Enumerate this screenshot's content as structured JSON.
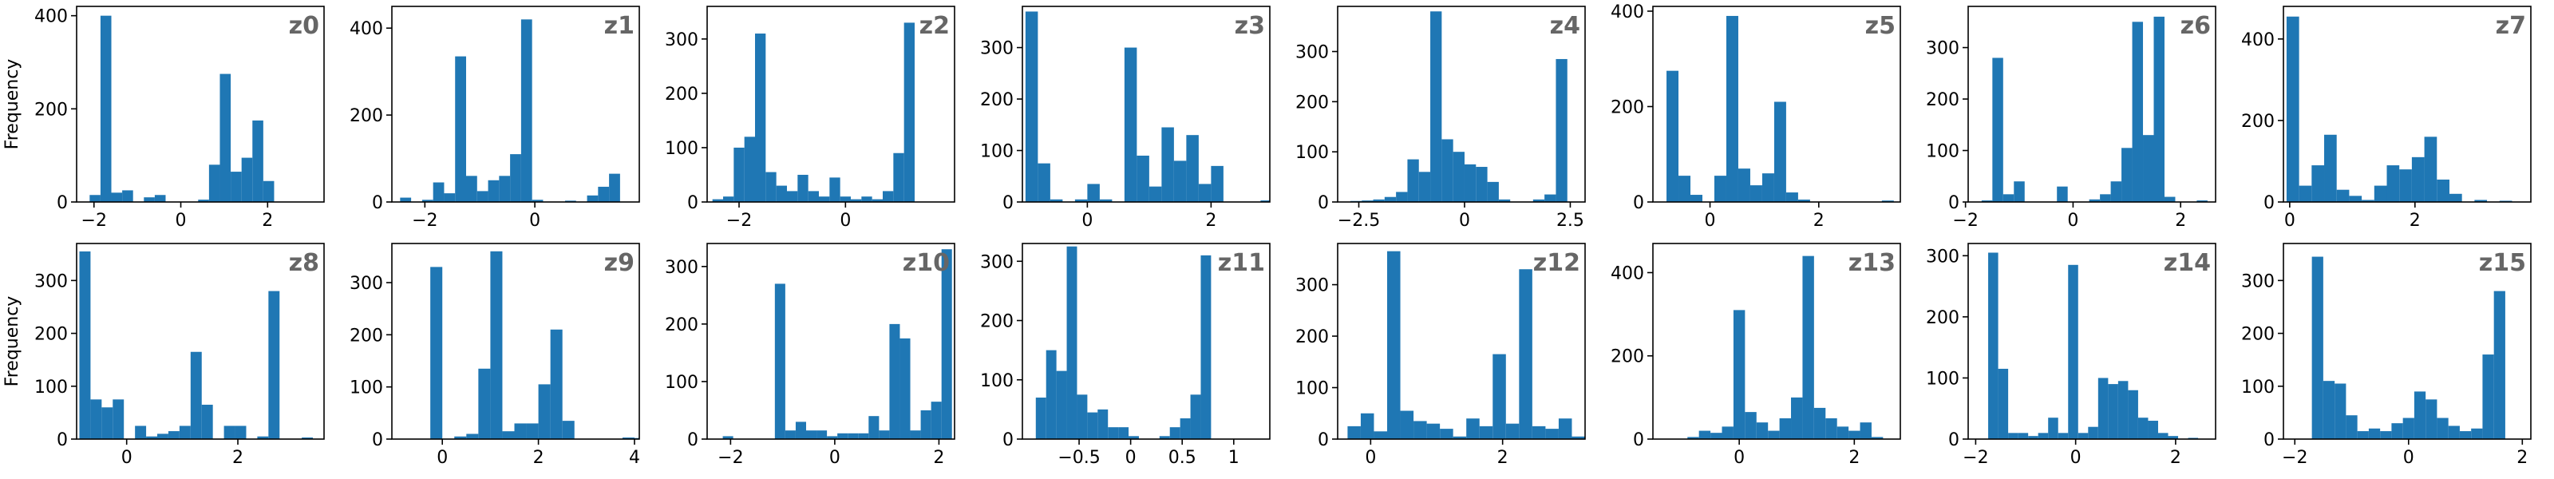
{
  "colors": {
    "bar": "#1f77b4",
    "title": "#666666",
    "axis": "#000000"
  },
  "ylabel": "Frequency",
  "chart_data": [
    {
      "title": "z0",
      "type": "bar",
      "xlim": [
        -2.4,
        3.3
      ],
      "ylim": [
        0,
        420
      ],
      "xticks": [
        -2,
        0,
        2
      ],
      "yticks": [
        0,
        200,
        400
      ],
      "bins_start": -2.1,
      "bin_width": 0.25,
      "values": [
        15,
        400,
        20,
        25,
        0,
        10,
        15,
        0,
        0,
        0,
        5,
        80,
        275,
        65,
        95,
        175,
        45,
        0,
        0,
        0
      ]
    },
    {
      "title": "z1",
      "type": "bar",
      "xlim": [
        -2.6,
        1.9
      ],
      "ylim": [
        0,
        450
      ],
      "xticks": [
        -2,
        0
      ],
      "yticks": [
        0,
        200,
        400
      ],
      "bins_start": -2.45,
      "bin_width": 0.2,
      "values": [
        10,
        0,
        5,
        45,
        20,
        335,
        60,
        25,
        50,
        60,
        110,
        420,
        5,
        0,
        0,
        3,
        0,
        15,
        35,
        65
      ]
    },
    {
      "title": "z2",
      "type": "bar",
      "xlim": [
        -2.6,
        2.05
      ],
      "ylim": [
        0,
        360
      ],
      "xticks": [
        -2,
        0
      ],
      "yticks": [
        0,
        100,
        200,
        300
      ],
      "bins_start": -2.5,
      "bin_width": 0.2,
      "values": [
        5,
        10,
        100,
        120,
        310,
        55,
        30,
        20,
        50,
        20,
        10,
        45,
        10,
        5,
        10,
        5,
        20,
        90,
        330
      ]
    },
    {
      "title": "z3",
      "type": "bar",
      "xlim": [
        -1.05,
        2.95
      ],
      "ylim": [
        0,
        380
      ],
      "xticks": [
        0,
        2
      ],
      "yticks": [
        0,
        100,
        200,
        300
      ],
      "bins_start": -1.0,
      "bin_width": 0.2,
      "values": [
        370,
        75,
        5,
        0,
        5,
        35,
        5,
        0,
        300,
        90,
        30,
        145,
        80,
        130,
        35,
        70,
        0,
        0,
        0,
        3
      ]
    },
    {
      "title": "z4",
      "type": "bar",
      "xlim": [
        -3.0,
        2.85
      ],
      "ylim": [
        0,
        390
      ],
      "xticks": [
        -2.5,
        0.0,
        2.5
      ],
      "yticks": [
        0,
        100,
        200,
        300
      ],
      "bins_start": -2.7,
      "bin_width": 0.27,
      "values": [
        2,
        3,
        5,
        10,
        20,
        85,
        60,
        380,
        125,
        100,
        75,
        70,
        40,
        5,
        0,
        0,
        5,
        15,
        285
      ]
    },
    {
      "title": "z5",
      "type": "bar",
      "xlim": [
        -1.05,
        3.5
      ],
      "ylim": [
        0,
        410
      ],
      "xticks": [
        0,
        2
      ],
      "yticks": [
        0,
        200,
        400
      ],
      "bins_start": -0.8,
      "bin_width": 0.22,
      "values": [
        275,
        55,
        15,
        0,
        55,
        390,
        70,
        35,
        60,
        210,
        20,
        5,
        0,
        0,
        0,
        0,
        0,
        0,
        3
      ]
    },
    {
      "title": "z6",
      "type": "bar",
      "xlim": [
        -1.95,
        2.65
      ],
      "ylim": [
        0,
        380
      ],
      "xticks": [
        -2,
        0,
        2
      ],
      "yticks": [
        0,
        100,
        200,
        300
      ],
      "bins_start": -1.9,
      "bin_width": 0.2,
      "values": [
        0,
        3,
        280,
        15,
        40,
        0,
        0,
        0,
        30,
        0,
        0,
        5,
        15,
        40,
        105,
        350,
        130,
        360,
        10,
        0,
        0,
        3
      ]
    },
    {
      "title": "z7",
      "type": "bar",
      "xlim": [
        -0.1,
        3.85
      ],
      "ylim": [
        0,
        480
      ],
      "xticks": [
        0,
        2
      ],
      "yticks": [
        0,
        200,
        400
      ],
      "bins_start": -0.05,
      "bin_width": 0.2,
      "values": [
        455,
        40,
        90,
        165,
        30,
        15,
        5,
        40,
        90,
        80,
        110,
        160,
        55,
        20,
        0,
        5,
        0,
        3
      ]
    },
    {
      "title": "z8",
      "type": "bar",
      "xlim": [
        -0.9,
        3.55
      ],
      "ylim": [
        0,
        370
      ],
      "xticks": [
        0,
        2
      ],
      "yticks": [
        0,
        100,
        200,
        300
      ],
      "bins_start": -0.85,
      "bin_width": 0.2,
      "values": [
        355,
        75,
        60,
        75,
        0,
        25,
        5,
        10,
        15,
        25,
        165,
        65,
        0,
        25,
        25,
        0,
        5,
        280,
        0,
        0,
        3
      ]
    },
    {
      "title": "z9",
      "type": "bar",
      "xlim": [
        -1.05,
        4.1
      ],
      "ylim": [
        0,
        375
      ],
      "xticks": [
        0,
        2,
        4
      ],
      "yticks": [
        0,
        100,
        200,
        300
      ],
      "bins_start": -0.25,
      "bin_width": 0.25,
      "values": [
        330,
        0,
        5,
        10,
        135,
        360,
        15,
        30,
        30,
        105,
        210,
        35,
        0,
        0,
        0,
        0,
        3,
        2
      ]
    },
    {
      "title": "z10",
      "type": "bar",
      "xlim": [
        -2.45,
        2.3
      ],
      "ylim": [
        0,
        340
      ],
      "xticks": [
        -2,
        0,
        2
      ],
      "yticks": [
        0,
        100,
        200,
        300
      ],
      "bins_start": -2.15,
      "bin_width": 0.2,
      "values": [
        5,
        0,
        0,
        0,
        0,
        270,
        15,
        30,
        15,
        15,
        5,
        10,
        10,
        10,
        40,
        15,
        200,
        175,
        15,
        50,
        65,
        330
      ]
    },
    {
      "title": "z11",
      "type": "bar",
      "xlim": [
        -1.05,
        1.35
      ],
      "ylim": [
        0,
        330
      ],
      "xticks": [
        -0.5,
        0.0,
        0.5,
        1.0
      ],
      "yticks": [
        0,
        100,
        200,
        300
      ],
      "bins_start": -0.92,
      "bin_width": 0.1,
      "values": [
        70,
        150,
        115,
        325,
        75,
        45,
        50,
        20,
        20,
        5,
        0,
        0,
        5,
        20,
        35,
        75,
        310
      ]
    },
    {
      "title": "z12",
      "type": "bar",
      "xlim": [
        -0.5,
        3.25
      ],
      "ylim": [
        0,
        380
      ],
      "xticks": [
        0,
        2
      ],
      "yticks": [
        0,
        100,
        200,
        300
      ],
      "bins_start": -0.35,
      "bin_width": 0.2,
      "values": [
        25,
        50,
        15,
        365,
        55,
        35,
        30,
        20,
        5,
        40,
        25,
        165,
        30,
        330,
        25,
        20,
        40,
        5,
        20
      ]
    },
    {
      "title": "z13",
      "type": "bar",
      "xlim": [
        -1.5,
        2.8
      ],
      "ylim": [
        0,
        470
      ],
      "xticks": [
        0,
        2
      ],
      "yticks": [
        0,
        200,
        400
      ],
      "bins_start": -0.9,
      "bin_width": 0.2,
      "values": [
        5,
        20,
        15,
        30,
        310,
        65,
        40,
        20,
        50,
        100,
        440,
        75,
        50,
        30,
        20,
        40,
        5
      ]
    },
    {
      "title": "z14",
      "type": "bar",
      "xlim": [
        -2.15,
        2.8
      ],
      "ylim": [
        0,
        320
      ],
      "xticks": [
        -2,
        0,
        2
      ],
      "yticks": [
        0,
        100,
        200,
        300
      ],
      "bins_start": -1.75,
      "bin_width": 0.2,
      "values": [
        305,
        115,
        10,
        10,
        5,
        10,
        35,
        10,
        285,
        10,
        20,
        100,
        90,
        95,
        80,
        35,
        30,
        10,
        5,
        0,
        2
      ]
    },
    {
      "title": "z15",
      "type": "bar",
      "xlim": [
        -2.2,
        2.15
      ],
      "ylim": [
        0,
        370
      ],
      "xticks": [
        -2,
        0,
        2
      ],
      "yticks": [
        0,
        100,
        200,
        300
      ],
      "bins_start": -1.7,
      "bin_width": 0.2,
      "values": [
        345,
        110,
        105,
        45,
        15,
        20,
        15,
        30,
        40,
        90,
        75,
        40,
        25,
        15,
        20,
        160,
        280
      ]
    }
  ]
}
